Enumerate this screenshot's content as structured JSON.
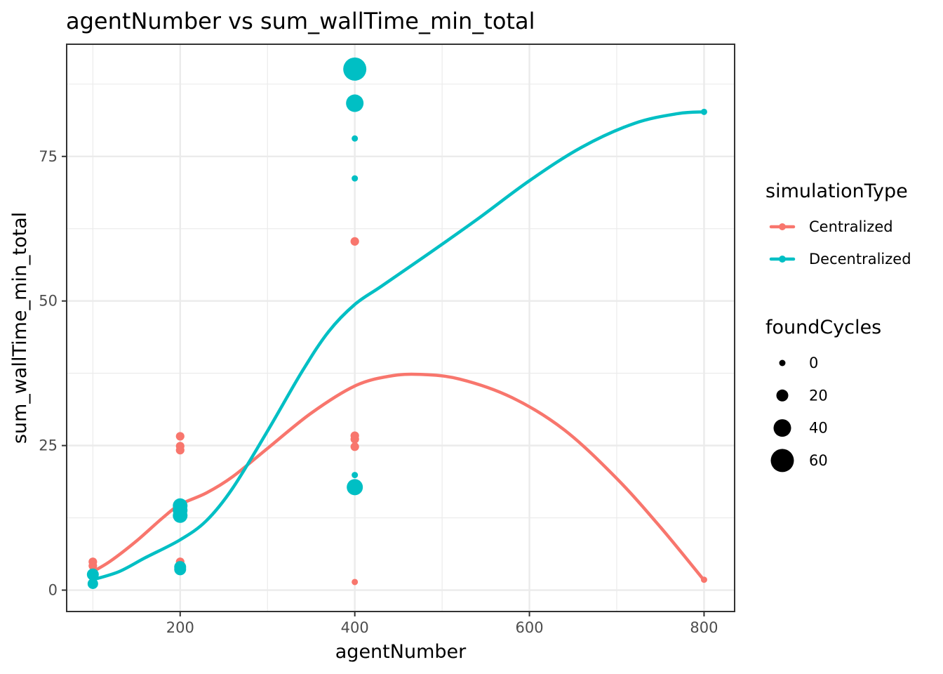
{
  "chart_data": {
    "type": "scatter",
    "title": "agentNumber  vs  sum_wallTime_min_total",
    "xlabel": "agentNumber",
    "ylabel": "sum_wallTime_min_total",
    "xlim": [
      70,
      835
    ],
    "ylim": [
      -3.7,
      94.4
    ],
    "x_ticks": [
      {
        "value": 200,
        "label": "200"
      },
      {
        "value": 400,
        "label": "400"
      },
      {
        "value": 600,
        "label": "600"
      },
      {
        "value": 800,
        "label": "800"
      }
    ],
    "y_ticks": [
      {
        "value": 0,
        "label": "0"
      },
      {
        "value": 25,
        "label": "25"
      },
      {
        "value": 50,
        "label": "50"
      },
      {
        "value": 75,
        "label": "75"
      }
    ],
    "x_minor": [
      100,
      300,
      500,
      700
    ],
    "y_minor": [
      12.5,
      37.5,
      62.5,
      87.5
    ],
    "grid": true,
    "legend_placement": "right",
    "color_legend": {
      "title": "simulationType",
      "entries": [
        {
          "label": "Centralized",
          "color": "#F8766D"
        },
        {
          "label": "Decentralized",
          "color": "#00BFC4"
        }
      ]
    },
    "size_legend": {
      "title": "foundCycles",
      "entries": [
        {
          "label": "0",
          "value": 0
        },
        {
          "label": "20",
          "value": 20
        },
        {
          "label": "40",
          "value": 40
        },
        {
          "label": "60",
          "value": 60
        }
      ]
    },
    "series": [
      {
        "name": "Centralized",
        "color": "#F8766D",
        "points": [
          {
            "x": 100,
            "y": 4.9,
            "size": 8
          },
          {
            "x": 100,
            "y": 4.2,
            "size": 8
          },
          {
            "x": 100,
            "y": 3.0,
            "size": 8
          },
          {
            "x": 200,
            "y": 26.6,
            "size": 8
          },
          {
            "x": 200,
            "y": 24.9,
            "size": 8
          },
          {
            "x": 200,
            "y": 24.2,
            "size": 8
          },
          {
            "x": 200,
            "y": 14.7,
            "size": 8
          },
          {
            "x": 200,
            "y": 4.9,
            "size": 8
          },
          {
            "x": 400,
            "y": 60.3,
            "size": 8
          },
          {
            "x": 400,
            "y": 26.7,
            "size": 8
          },
          {
            "x": 400,
            "y": 26.1,
            "size": 8
          },
          {
            "x": 400,
            "y": 24.8,
            "size": 8
          },
          {
            "x": 400,
            "y": 1.4,
            "size": 0
          },
          {
            "x": 800,
            "y": 1.8,
            "size": 0
          }
        ],
        "smooth": [
          {
            "x": 100,
            "y": 3.2
          },
          {
            "x": 120,
            "y": 5.0
          },
          {
            "x": 150,
            "y": 8.5
          },
          {
            "x": 180,
            "y": 12.5
          },
          {
            "x": 200,
            "y": 14.8
          },
          {
            "x": 230,
            "y": 16.8
          },
          {
            "x": 260,
            "y": 19.6
          },
          {
            "x": 300,
            "y": 24.5
          },
          {
            "x": 350,
            "y": 30.6
          },
          {
            "x": 400,
            "y": 35.3
          },
          {
            "x": 440,
            "y": 37.0
          },
          {
            "x": 475,
            "y": 37.3
          },
          {
            "x": 520,
            "y": 36.5
          },
          {
            "x": 580,
            "y": 33.3
          },
          {
            "x": 640,
            "y": 27.7
          },
          {
            "x": 700,
            "y": 19.3
          },
          {
            "x": 750,
            "y": 10.9
          },
          {
            "x": 800,
            "y": 1.7
          }
        ]
      },
      {
        "name": "Decentralized",
        "color": "#00BFC4",
        "points": [
          {
            "x": 100,
            "y": 2.7,
            "size": 20
          },
          {
            "x": 100,
            "y": 1.1,
            "size": 15
          },
          {
            "x": 200,
            "y": 14.6,
            "size": 30
          },
          {
            "x": 200,
            "y": 13.8,
            "size": 30
          },
          {
            "x": 200,
            "y": 12.9,
            "size": 30
          },
          {
            "x": 200,
            "y": 4.0,
            "size": 20
          },
          {
            "x": 200,
            "y": 3.6,
            "size": 20
          },
          {
            "x": 400,
            "y": 90.1,
            "size": 60
          },
          {
            "x": 400,
            "y": 84.2,
            "size": 40
          },
          {
            "x": 400,
            "y": 78.1,
            "size": 0
          },
          {
            "x": 400,
            "y": 71.2,
            "size": 0
          },
          {
            "x": 400,
            "y": 19.9,
            "size": 0
          },
          {
            "x": 400,
            "y": 17.8,
            "size": 35
          },
          {
            "x": 800,
            "y": 82.7,
            "size": 0
          }
        ],
        "smooth": [
          {
            "x": 100,
            "y": 1.8
          },
          {
            "x": 130,
            "y": 3.2
          },
          {
            "x": 160,
            "y": 5.6
          },
          {
            "x": 200,
            "y": 8.7
          },
          {
            "x": 230,
            "y": 12.0
          },
          {
            "x": 260,
            "y": 17.6
          },
          {
            "x": 300,
            "y": 27.5
          },
          {
            "x": 340,
            "y": 37.9
          },
          {
            "x": 370,
            "y": 44.7
          },
          {
            "x": 400,
            "y": 49.4
          },
          {
            "x": 430,
            "y": 52.5
          },
          {
            "x": 480,
            "y": 57.7
          },
          {
            "x": 540,
            "y": 64.1
          },
          {
            "x": 600,
            "y": 70.8
          },
          {
            "x": 660,
            "y": 76.6
          },
          {
            "x": 720,
            "y": 80.7
          },
          {
            "x": 770,
            "y": 82.4
          },
          {
            "x": 800,
            "y": 82.7
          }
        ]
      }
    ]
  }
}
